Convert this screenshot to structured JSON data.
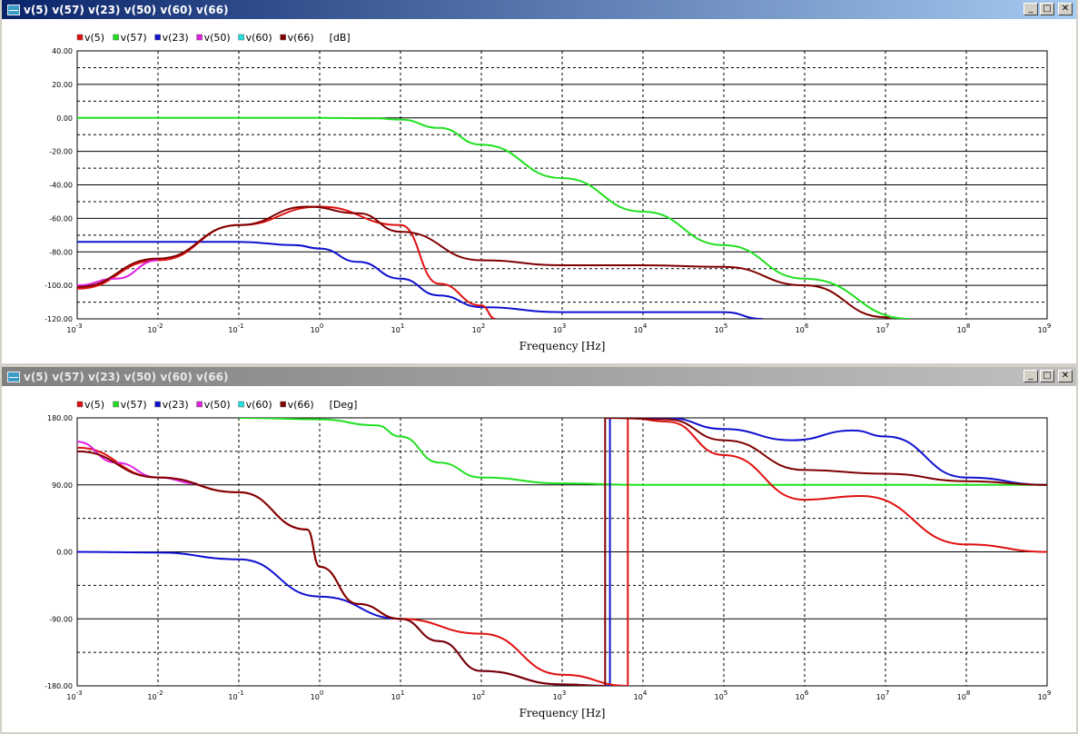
{
  "windows": [
    {
      "title": "v(5) v(57) v(23) v(50) v(60) v(66)",
      "unit": "[dB]",
      "xlabel": "Frequency [Hz]",
      "y_ticks": [
        "40.00",
        "20.00",
        "0.00",
        "-20.00",
        "-40.00",
        "-60.00",
        "-80.00",
        "-100.00",
        "-120.00"
      ],
      "x_ticks": [
        "-3",
        "-2",
        "-1",
        "0",
        "1",
        "2",
        "3",
        "4",
        "5",
        "6",
        "7",
        "8",
        "9"
      ]
    },
    {
      "title": "v(5) v(57) v(23) v(50) v(60) v(66)",
      "unit": "[Deg]",
      "xlabel": "Frequency [Hz]",
      "y_ticks": [
        "180.00",
        "90.00",
        "0.00",
        "-90.00",
        "-180.00"
      ],
      "x_ticks": [
        "-3",
        "-2",
        "-1",
        "0",
        "1",
        "2",
        "3",
        "4",
        "5",
        "6",
        "7",
        "8",
        "9"
      ]
    }
  ],
  "legend": [
    {
      "name": "v(5)",
      "color": "#e01010"
    },
    {
      "name": "v(57)",
      "color": "#20e020"
    },
    {
      "name": "v(23)",
      "color": "#1010d0"
    },
    {
      "name": "v(50)",
      "color": "#e020e0"
    },
    {
      "name": "v(60)",
      "color": "#20e0e0"
    },
    {
      "name": "v(66)",
      "color": "#800000"
    }
  ],
  "chart_data": [
    {
      "type": "line",
      "title": "",
      "xlabel": "Frequency [Hz]",
      "ylabel": "[dB]",
      "x_scale": "log",
      "xlim": [
        0.001,
        1000000000
      ],
      "ylim": [
        -120,
        40
      ],
      "grid": true,
      "legend_position": "top-left",
      "series": [
        {
          "name": "v(57)",
          "color": "#20e020",
          "points": [
            [
              0.001,
              0
            ],
            [
              1,
              0
            ],
            [
              5,
              -0.3
            ],
            [
              10,
              -1
            ],
            [
              30,
              -6
            ],
            [
              100,
              -16
            ],
            [
              1000,
              -36
            ],
            [
              10000,
              -56
            ],
            [
              100000,
              -76
            ],
            [
              1000000,
              -96
            ],
            [
              20000000,
              -120
            ]
          ]
        },
        {
          "name": "v(23)",
          "color": "#1010d0",
          "points": [
            [
              0.001,
              -74
            ],
            [
              0.1,
              -74
            ],
            [
              0.5,
              -76
            ],
            [
              1,
              -78
            ],
            [
              3,
              -86
            ],
            [
              10,
              -96
            ],
            [
              30,
              -106
            ],
            [
              100,
              -113
            ],
            [
              1000,
              -116
            ],
            [
              100000,
              -116
            ],
            [
              300000,
              -120
            ]
          ]
        },
        {
          "name": "v(5)",
          "color": "#e01010",
          "points": [
            [
              0.001,
              -102
            ],
            [
              0.01,
              -85
            ],
            [
              0.1,
              -64
            ],
            [
              1,
              -53
            ],
            [
              10,
              -64
            ],
            [
              30,
              -99
            ],
            [
              100,
              -112
            ],
            [
              150,
              -120
            ]
          ]
        },
        {
          "name": "v(50)",
          "color": "#e020e0",
          "points": [
            [
              0.001,
              -100
            ],
            [
              0.003,
              -96
            ],
            [
              0.01,
              -85
            ]
          ]
        },
        {
          "name": "v(66)",
          "color": "#800000",
          "points": [
            [
              0.001,
              -101
            ],
            [
              0.01,
              -84
            ],
            [
              0.1,
              -64
            ],
            [
              0.7,
              -53
            ],
            [
              3,
              -57
            ],
            [
              10,
              -68
            ],
            [
              100,
              -85
            ],
            [
              1000,
              -88
            ],
            [
              10000,
              -88
            ],
            [
              100000,
              -89
            ],
            [
              1000000,
              -100
            ],
            [
              10000000,
              -119
            ],
            [
              12000000,
              -120
            ]
          ]
        }
      ]
    },
    {
      "type": "line",
      "title": "",
      "xlabel": "Frequency [Hz]",
      "ylabel": "[Deg]",
      "x_scale": "log",
      "xlim": [
        0.001,
        1000000000
      ],
      "ylim": [
        -180,
        180
      ],
      "grid": true,
      "legend_position": "top-left",
      "series": [
        {
          "name": "v(57)",
          "color": "#20e020",
          "points": [
            [
              0.1,
              180
            ],
            [
              1,
              178
            ],
            [
              5,
              170
            ],
            [
              10,
              155
            ],
            [
              30,
              120
            ],
            [
              100,
              100
            ],
            [
              1000,
              92
            ],
            [
              10000,
              90
            ],
            [
              1000000000,
              90
            ]
          ]
        },
        {
          "name": "v(23)",
          "color": "#1010d0",
          "points": [
            [
              0.001,
              0
            ],
            [
              0.01,
              -1
            ],
            [
              0.1,
              -10
            ],
            [
              1,
              -60
            ],
            [
              10,
              -90
            ],
            [
              30,
              -120
            ],
            [
              100,
              -160
            ],
            [
              1000,
              -178
            ],
            [
              3900,
              -180
            ],
            [
              3900,
              180
            ],
            [
              20000,
              180
            ],
            [
              100000,
              165
            ],
            [
              700000,
              150
            ],
            [
              4000000,
              163
            ],
            [
              10000000,
              155
            ],
            [
              100000000,
              100
            ],
            [
              1000000000,
              90
            ]
          ]
        },
        {
          "name": "v(5)",
          "color": "#e01010",
          "points": [
            [
              0.001,
              140
            ],
            [
              0.01,
              100
            ],
            [
              0.1,
              80
            ],
            [
              0.7,
              30
            ],
            [
              1,
              -20
            ],
            [
              3,
              -70
            ],
            [
              10,
              -90
            ],
            [
              100,
              -110
            ],
            [
              1000,
              -165
            ],
            [
              6500,
              -180
            ],
            [
              6500,
              180
            ],
            [
              20000,
              175
            ],
            [
              100000,
              130
            ],
            [
              1000000,
              70
            ],
            [
              5000000,
              75
            ],
            [
              100000000,
              10
            ],
            [
              1000000000,
              0
            ]
          ]
        },
        {
          "name": "v(50)",
          "color": "#e020e0",
          "points": [
            [
              0.001,
              148
            ],
            [
              0.003,
              120
            ],
            [
              0.01,
              100
            ],
            [
              0.03,
              92
            ]
          ]
        },
        {
          "name": "v(66)",
          "color": "#800000",
          "points": [
            [
              0.001,
              135
            ],
            [
              0.01,
              100
            ],
            [
              0.1,
              80
            ],
            [
              0.7,
              30
            ],
            [
              1,
              -20
            ],
            [
              3,
              -70
            ],
            [
              10,
              -90
            ],
            [
              30,
              -120
            ],
            [
              100,
              -160
            ],
            [
              1000,
              -178
            ],
            [
              3400,
              -180
            ],
            [
              3400,
              180
            ],
            [
              20000,
              178
            ],
            [
              100000,
              150
            ],
            [
              1000000,
              110
            ],
            [
              10000000,
              105
            ],
            [
              100000000,
              95
            ],
            [
              1000000000,
              90
            ]
          ]
        }
      ]
    }
  ]
}
